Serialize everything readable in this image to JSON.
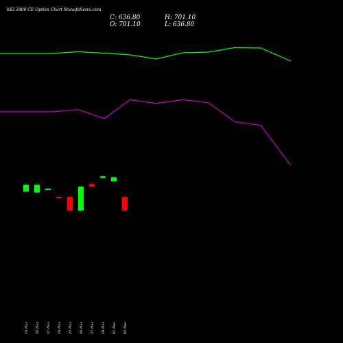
{
  "title": "KEI 3400  CE Option  Chart MunafaSutra.com",
  "ohlc": {
    "c": "C: 636.80",
    "h": "H: 701.10",
    "o": "O: 701.10",
    "l": "L: 636.80"
  },
  "colors": {
    "background": "#000000",
    "up": "#00ff00",
    "down": "#ff0000",
    "upper_line": "#00ff00",
    "lower_line": "#cc00cc"
  },
  "chart_data": {
    "type": "candlestick",
    "categories": [
      "19 Nov",
      "20 Nov",
      "21 Nov",
      "24 Nov",
      "25 Nov",
      "26 Nov",
      "27 Nov",
      "28 Nov",
      "01 Dec",
      "02 Dec"
    ],
    "candles": [
      {
        "open": 990,
        "close": 1030
      },
      {
        "open": 985,
        "close": 1030
      },
      {
        "open": 1000,
        "close": 1008
      },
      {
        "open": 960,
        "close": 955
      },
      {
        "open": 960,
        "close": 880
      },
      {
        "open": 880,
        "close": 1020
      },
      {
        "open": 1035,
        "close": 1020
      },
      {
        "open": 1070,
        "close": 1080
      },
      {
        "open": 1050,
        "close": 1075
      },
      {
        "open": 960,
        "close": 880
      }
    ],
    "upper_line": [
      2910,
      2910,
      2935,
      2915,
      2890,
      2830,
      2920,
      2930,
      2995,
      2990
    ],
    "lower_line": [
      1830,
      1830,
      1860,
      1740,
      1990,
      1940,
      1990,
      1950,
      1700,
      1650
    ],
    "line_x_extra": {
      "upper": 2800,
      "lower": 1120
    }
  }
}
